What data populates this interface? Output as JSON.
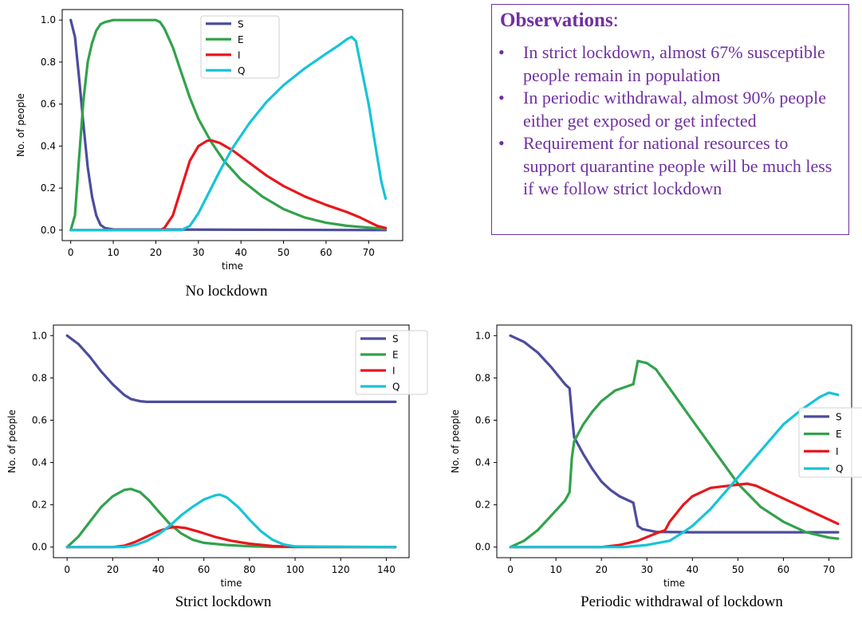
{
  "observations": {
    "title": "Observations",
    "title_suffix": ":",
    "bullet": "•",
    "items": [
      "In strict lockdown, almost 67% susceptible people remain in population",
      "In periodic withdrawal, almost 90% people either get exposed or get infected",
      "Requirement for national resources to support quarantine people will be much less if we follow strict lockdown"
    ]
  },
  "captions": {
    "no_lockdown": "No lockdown",
    "strict": "Strict lockdown",
    "periodic": "Periodic withdrawal of lockdown"
  },
  "colors": {
    "S": "#4c4c9d",
    "E": "#32a24c",
    "I": "#e8171c",
    "Q": "#17c4d8"
  },
  "chart_data": [
    {
      "id": "no_lockdown",
      "type": "line",
      "title": "",
      "xlabel": "time",
      "ylabel": "No. of people",
      "xlim": [
        -2,
        78
      ],
      "ylim": [
        -0.05,
        1.05
      ],
      "xticks": [
        0,
        10,
        20,
        30,
        40,
        50,
        60,
        70
      ],
      "yticks": [
        0.0,
        0.2,
        0.4,
        0.6,
        0.8,
        1.0
      ],
      "legend_position": "top-center",
      "series": [
        {
          "name": "S",
          "points": [
            [
              0,
              1.0
            ],
            [
              1,
              0.92
            ],
            [
              2,
              0.72
            ],
            [
              3,
              0.5
            ],
            [
              4,
              0.3
            ],
            [
              5,
              0.16
            ],
            [
              6,
              0.07
            ],
            [
              7,
              0.025
            ],
            [
              8,
              0.01
            ],
            [
              10,
              0.003
            ],
            [
              74,
              0.0
            ]
          ]
        },
        {
          "name": "E",
          "points": [
            [
              0,
              0.0
            ],
            [
              1,
              0.07
            ],
            [
              2,
              0.35
            ],
            [
              3,
              0.62
            ],
            [
              4,
              0.8
            ],
            [
              5,
              0.89
            ],
            [
              6,
              0.95
            ],
            [
              7,
              0.98
            ],
            [
              8,
              0.99
            ],
            [
              10,
              1.0
            ],
            [
              20,
              1.0
            ],
            [
              21,
              0.99
            ],
            [
              22,
              0.96
            ],
            [
              24,
              0.87
            ],
            [
              26,
              0.75
            ],
            [
              28,
              0.63
            ],
            [
              30,
              0.53
            ],
            [
              33,
              0.42
            ],
            [
              36,
              0.33
            ],
            [
              40,
              0.24
            ],
            [
              45,
              0.16
            ],
            [
              50,
              0.1
            ],
            [
              55,
              0.06
            ],
            [
              60,
              0.035
            ],
            [
              65,
              0.02
            ],
            [
              70,
              0.012
            ],
            [
              74,
              0.005
            ]
          ]
        },
        {
          "name": "I",
          "points": [
            [
              0,
              0.0
            ],
            [
              21,
              0.0
            ],
            [
              22,
              0.01
            ],
            [
              24,
              0.07
            ],
            [
              26,
              0.2
            ],
            [
              28,
              0.33
            ],
            [
              30,
              0.4
            ],
            [
              32,
              0.425
            ],
            [
              33,
              0.427
            ],
            [
              35,
              0.415
            ],
            [
              38,
              0.38
            ],
            [
              42,
              0.32
            ],
            [
              46,
              0.26
            ],
            [
              50,
              0.21
            ],
            [
              55,
              0.16
            ],
            [
              60,
              0.12
            ],
            [
              65,
              0.085
            ],
            [
              68,
              0.06
            ],
            [
              70,
              0.04
            ],
            [
              72,
              0.02
            ],
            [
              74,
              0.01
            ]
          ]
        },
        {
          "name": "Q",
          "points": [
            [
              0,
              0.0
            ],
            [
              26,
              0.0
            ],
            [
              28,
              0.02
            ],
            [
              30,
              0.08
            ],
            [
              32,
              0.16
            ],
            [
              35,
              0.28
            ],
            [
              38,
              0.39
            ],
            [
              42,
              0.51
            ],
            [
              46,
              0.61
            ],
            [
              50,
              0.69
            ],
            [
              55,
              0.77
            ],
            [
              60,
              0.84
            ],
            [
              63,
              0.88
            ],
            [
              65,
              0.91
            ],
            [
              66,
              0.92
            ],
            [
              67,
              0.9
            ],
            [
              68,
              0.8
            ],
            [
              70,
              0.6
            ],
            [
              72,
              0.35
            ],
            [
              73,
              0.23
            ],
            [
              74,
              0.15
            ]
          ]
        }
      ]
    },
    {
      "id": "strict",
      "type": "line",
      "title": "",
      "xlabel": "time",
      "ylabel": "No. of people",
      "xlim": [
        -6,
        150
      ],
      "ylim": [
        -0.05,
        1.05
      ],
      "xticks": [
        0,
        20,
        40,
        60,
        80,
        100,
        120,
        140
      ],
      "yticks": [
        0.0,
        0.2,
        0.4,
        0.6,
        0.8,
        1.0
      ],
      "legend_position": "top-right",
      "series": [
        {
          "name": "S",
          "points": [
            [
              0,
              1.0
            ],
            [
              5,
              0.96
            ],
            [
              10,
              0.9
            ],
            [
              15,
              0.83
            ],
            [
              20,
              0.77
            ],
            [
              25,
              0.72
            ],
            [
              28,
              0.7
            ],
            [
              32,
              0.69
            ],
            [
              35,
              0.687
            ],
            [
              144,
              0.687
            ]
          ]
        },
        {
          "name": "E",
          "points": [
            [
              0,
              0.0
            ],
            [
              5,
              0.05
            ],
            [
              10,
              0.12
            ],
            [
              15,
              0.19
            ],
            [
              20,
              0.24
            ],
            [
              25,
              0.27
            ],
            [
              28,
              0.275
            ],
            [
              32,
              0.26
            ],
            [
              36,
              0.22
            ],
            [
              40,
              0.17
            ],
            [
              45,
              0.11
            ],
            [
              50,
              0.065
            ],
            [
              55,
              0.035
            ],
            [
              60,
              0.02
            ],
            [
              70,
              0.01
            ],
            [
              80,
              0.004
            ],
            [
              90,
              0.001
            ],
            [
              144,
              0.0
            ]
          ]
        },
        {
          "name": "I",
          "points": [
            [
              0,
              0.0
            ],
            [
              20,
              0.0
            ],
            [
              25,
              0.006
            ],
            [
              30,
              0.025
            ],
            [
              35,
              0.05
            ],
            [
              40,
              0.075
            ],
            [
              45,
              0.092
            ],
            [
              48,
              0.095
            ],
            [
              52,
              0.09
            ],
            [
              58,
              0.072
            ],
            [
              65,
              0.048
            ],
            [
              72,
              0.03
            ],
            [
              80,
              0.016
            ],
            [
              90,
              0.005
            ],
            [
              100,
              0.001
            ],
            [
              144,
              0.0
            ]
          ]
        },
        {
          "name": "Q",
          "points": [
            [
              0,
              0.0
            ],
            [
              25,
              0.0
            ],
            [
              30,
              0.01
            ],
            [
              35,
              0.03
            ],
            [
              40,
              0.06
            ],
            [
              45,
              0.1
            ],
            [
              50,
              0.15
            ],
            [
              55,
              0.19
            ],
            [
              60,
              0.225
            ],
            [
              65,
              0.245
            ],
            [
              67,
              0.248
            ],
            [
              70,
              0.235
            ],
            [
              75,
              0.19
            ],
            [
              80,
              0.13
            ],
            [
              85,
              0.075
            ],
            [
              90,
              0.035
            ],
            [
              95,
              0.012
            ],
            [
              100,
              0.003
            ],
            [
              144,
              0.0
            ]
          ]
        }
      ]
    },
    {
      "id": "periodic",
      "type": "line",
      "title": "",
      "xlabel": "time",
      "ylabel": "No. of people",
      "xlim": [
        -3,
        75
      ],
      "ylim": [
        -0.05,
        1.05
      ],
      "xticks": [
        0,
        10,
        20,
        30,
        40,
        50,
        60,
        70
      ],
      "yticks": [
        0.0,
        0.2,
        0.4,
        0.6,
        0.8,
        1.0
      ],
      "legend_position": "center-right",
      "series": [
        {
          "name": "S",
          "points": [
            [
              0,
              1.0
            ],
            [
              3,
              0.97
            ],
            [
              6,
              0.92
            ],
            [
              9,
              0.85
            ],
            [
              12,
              0.77
            ],
            [
              13,
              0.75
            ],
            [
              13.5,
              0.63
            ],
            [
              14,
              0.52
            ],
            [
              16,
              0.44
            ],
            [
              18,
              0.37
            ],
            [
              20,
              0.31
            ],
            [
              22,
              0.27
            ],
            [
              24,
              0.24
            ],
            [
              27,
              0.21
            ],
            [
              28,
              0.1
            ],
            [
              29,
              0.085
            ],
            [
              32,
              0.072
            ],
            [
              40,
              0.07
            ],
            [
              72,
              0.07
            ]
          ]
        },
        {
          "name": "E",
          "points": [
            [
              0,
              0.0
            ],
            [
              3,
              0.03
            ],
            [
              6,
              0.08
            ],
            [
              9,
              0.15
            ],
            [
              12,
              0.22
            ],
            [
              13,
              0.26
            ],
            [
              13.5,
              0.42
            ],
            [
              14,
              0.5
            ],
            [
              16,
              0.58
            ],
            [
              18,
              0.64
            ],
            [
              20,
              0.69
            ],
            [
              23,
              0.74
            ],
            [
              27,
              0.77
            ],
            [
              28,
              0.88
            ],
            [
              30,
              0.87
            ],
            [
              32,
              0.84
            ],
            [
              35,
              0.75
            ],
            [
              40,
              0.6
            ],
            [
              45,
              0.45
            ],
            [
              48,
              0.36
            ],
            [
              50,
              0.3
            ],
            [
              55,
              0.19
            ],
            [
              60,
              0.12
            ],
            [
              65,
              0.07
            ],
            [
              70,
              0.045
            ],
            [
              72,
              0.04
            ]
          ]
        },
        {
          "name": "I",
          "points": [
            [
              0,
              0.0
            ],
            [
              20,
              0.0
            ],
            [
              24,
              0.01
            ],
            [
              28,
              0.03
            ],
            [
              32,
              0.065
            ],
            [
              34,
              0.08
            ],
            [
              35,
              0.12
            ],
            [
              38,
              0.2
            ],
            [
              40,
              0.24
            ],
            [
              44,
              0.28
            ],
            [
              48,
              0.29
            ],
            [
              50,
              0.295
            ],
            [
              52,
              0.3
            ],
            [
              54,
              0.29
            ],
            [
              56,
              0.27
            ],
            [
              60,
              0.23
            ],
            [
              65,
              0.18
            ],
            [
              70,
              0.13
            ],
            [
              72,
              0.11
            ]
          ]
        },
        {
          "name": "Q",
          "points": [
            [
              0,
              0.0
            ],
            [
              25,
              0.0
            ],
            [
              30,
              0.01
            ],
            [
              35,
              0.03
            ],
            [
              38,
              0.07
            ],
            [
              40,
              0.1
            ],
            [
              44,
              0.18
            ],
            [
              48,
              0.28
            ],
            [
              52,
              0.38
            ],
            [
              56,
              0.48
            ],
            [
              60,
              0.58
            ],
            [
              64,
              0.65
            ],
            [
              68,
              0.71
            ],
            [
              70,
              0.73
            ],
            [
              72,
              0.72
            ]
          ]
        }
      ]
    }
  ]
}
